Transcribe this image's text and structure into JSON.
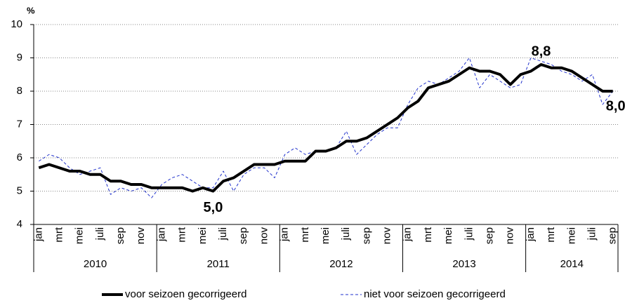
{
  "chart_data": {
    "type": "line",
    "y_label": "%",
    "categories": [
      "jan",
      null,
      "mrt",
      null,
      "mei",
      null,
      "juli",
      null,
      "sep",
      null,
      "nov",
      null,
      "jan",
      null,
      "mrt",
      null,
      "mei",
      null,
      "juli",
      null,
      "sep",
      null,
      "nov",
      null,
      "jan",
      null,
      "mrt",
      null,
      "mei",
      null,
      "juli",
      null,
      "sep",
      null,
      "nov",
      null,
      "jan",
      null,
      "mrt",
      null,
      "mei",
      null,
      "juli",
      null,
      "sep",
      null,
      "nov",
      null,
      "jan",
      null,
      "mrt",
      null,
      "mei",
      null,
      "juli",
      null,
      "sep"
    ],
    "years": [
      "2010",
      "2011",
      "2012",
      "2013",
      "2014"
    ],
    "series": [
      {
        "name": "voor seizoen gecorrigeerd",
        "color": "#000000",
        "values": [
          5.7,
          5.8,
          5.7,
          5.6,
          5.6,
          5.5,
          5.5,
          5.3,
          5.3,
          5.2,
          5.2,
          5.1,
          5.1,
          5.1,
          5.1,
          5.0,
          5.1,
          5.0,
          5.3,
          5.4,
          5.6,
          5.8,
          5.8,
          5.8,
          5.9,
          5.9,
          5.9,
          6.2,
          6.2,
          6.3,
          6.5,
          6.5,
          6.6,
          6.8,
          7.0,
          7.2,
          7.5,
          7.7,
          8.1,
          8.2,
          8.3,
          8.5,
          8.7,
          8.6,
          8.6,
          8.5,
          8.2,
          8.5,
          8.6,
          8.8,
          8.7,
          8.7,
          8.6,
          8.4,
          8.2,
          8.0,
          8.0
        ]
      },
      {
        "name": "niet voor seizoen gecorrigeerd",
        "color": "#2233cc",
        "values": [
          5.9,
          6.1,
          6.0,
          5.7,
          5.5,
          5.6,
          5.7,
          4.9,
          5.1,
          5.0,
          5.1,
          4.8,
          5.2,
          5.4,
          5.5,
          5.3,
          5.1,
          5.1,
          5.6,
          5.0,
          5.5,
          5.7,
          5.7,
          5.4,
          6.1,
          6.3,
          6.1,
          6.2,
          6.2,
          6.3,
          6.8,
          6.1,
          6.4,
          6.7,
          6.9,
          6.9,
          7.6,
          8.1,
          8.3,
          8.2,
          8.4,
          8.6,
          9.0,
          8.1,
          8.5,
          8.3,
          8.1,
          8.2,
          9.0,
          8.9,
          8.8,
          8.6,
          8.5,
          8.3,
          8.5,
          7.6,
          8.0
        ]
      }
    ],
    "annotations": [
      "5,0",
      "8,8",
      "8,0"
    ],
    "ylim": [
      4,
      10
    ],
    "yticks": [
      4,
      5,
      6,
      7,
      8,
      9,
      10
    ],
    "grid": true
  }
}
